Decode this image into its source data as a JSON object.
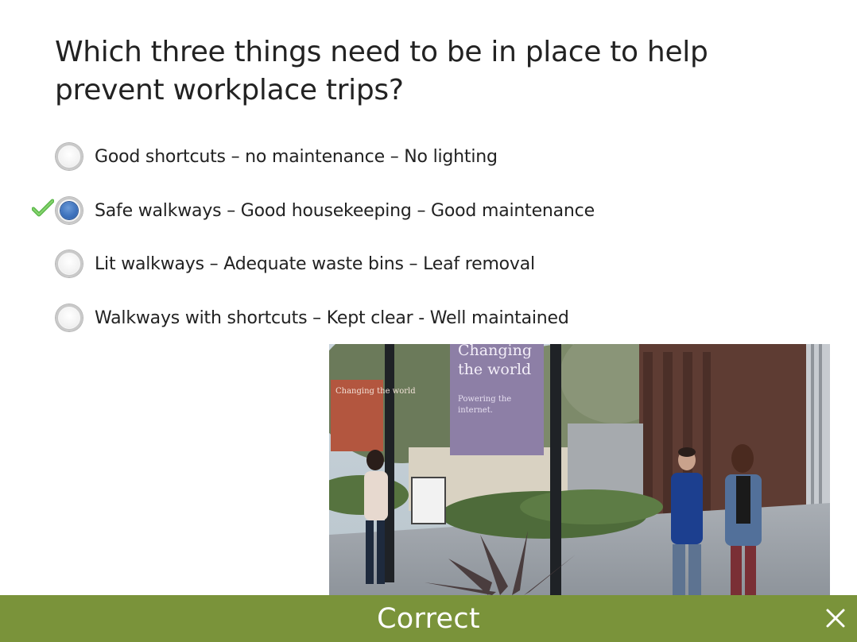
{
  "question": {
    "text": "Which three things need to be in place to help prevent workplace trips?"
  },
  "options": [
    {
      "label": "Good shortcuts – no maintenance – No lighting",
      "selected": false,
      "correct": false
    },
    {
      "label": "Safe walkways – Good housekeeping – Good maintenance",
      "selected": true,
      "correct": true
    },
    {
      "label": "Lit walkways – Adequate waste bins – Leaf removal",
      "selected": false,
      "correct": false
    },
    {
      "label": "Walkways with shortcuts – Kept clear - Well maintained",
      "selected": false,
      "correct": false
    }
  ],
  "image": {
    "banner_left_title": "Changing the world",
    "banner_center_title_1": "Changing",
    "banner_center_title_2": "the world",
    "banner_center_subtitle_1": "Powering the",
    "banner_center_subtitle_2": "internet."
  },
  "feedback": {
    "status": "Correct",
    "close_symbol": "✕"
  },
  "colors": {
    "feedback_bar": "#7a933a",
    "radio_selected": "#3f73bd",
    "check_mark": "#5cb84a"
  },
  "icons": {
    "check": "check-icon",
    "close": "close-icon"
  }
}
